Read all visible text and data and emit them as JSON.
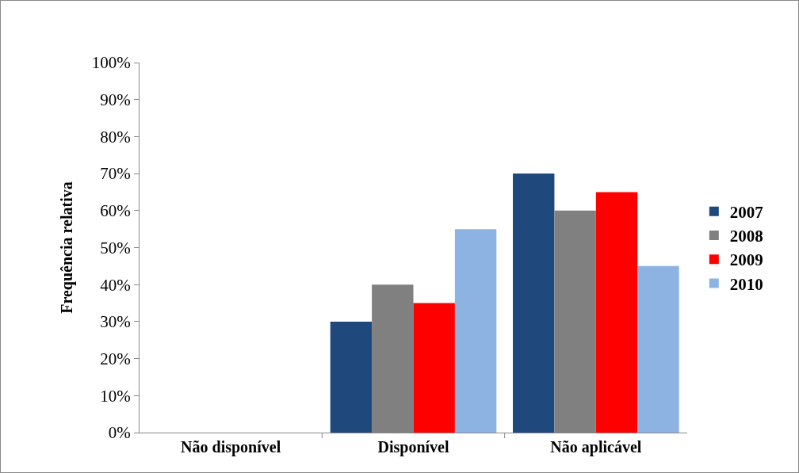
{
  "chart_data": {
    "type": "bar",
    "ylabel": "Frequência relativa",
    "categories": [
      "Não disponível",
      "Disponível",
      "Não aplicável"
    ],
    "series": [
      {
        "name": "2007",
        "color": "#1f497d",
        "values": [
          0,
          30,
          70
        ]
      },
      {
        "name": "2008",
        "color": "#808080",
        "values": [
          0,
          40,
          60
        ]
      },
      {
        "name": "2009",
        "color": "#ff0000",
        "values": [
          0,
          35,
          65
        ]
      },
      {
        "name": "2010",
        "color": "#8db3e2",
        "values": [
          0,
          55,
          45
        ]
      }
    ],
    "ylim": [
      0,
      100
    ],
    "yticks": [
      {
        "value": 0,
        "label": "0%"
      },
      {
        "value": 10,
        "label": "10%"
      },
      {
        "value": 20,
        "label": "20%"
      },
      {
        "value": 30,
        "label": "30%"
      },
      {
        "value": 40,
        "label": "40%"
      },
      {
        "value": 50,
        "label": "50%"
      },
      {
        "value": 60,
        "label": "60%"
      },
      {
        "value": 70,
        "label": "70%"
      },
      {
        "value": 80,
        "label": "80%"
      },
      {
        "value": 90,
        "label": "90%"
      },
      {
        "value": 100,
        "label": "100%"
      }
    ],
    "grid": false,
    "legend": "right"
  }
}
